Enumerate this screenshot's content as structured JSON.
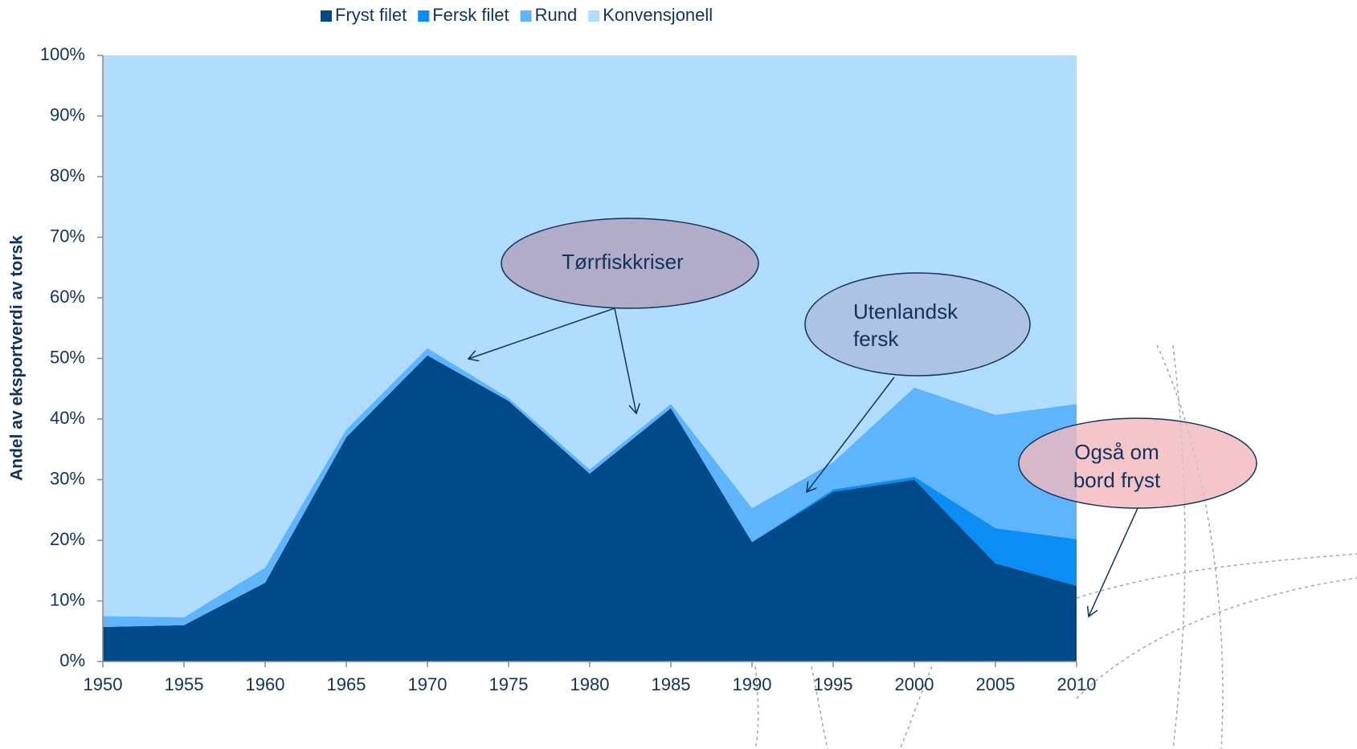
{
  "chart_data": {
    "type": "stacked_area",
    "x": [
      1950,
      1955,
      1960,
      1965,
      1970,
      1975,
      1980,
      1985,
      1990,
      1995,
      2000,
      2005,
      2010
    ],
    "series": [
      {
        "name": "Fryst filet",
        "color": "#004a8a",
        "values": [
          5.7,
          6.0,
          13.0,
          37.0,
          50.5,
          43.0,
          31.0,
          41.8,
          19.7,
          28.0,
          30.0,
          16.2,
          12.5
        ]
      },
      {
        "name": "Fersk filet",
        "color": "#0a8ef5",
        "values": [
          0,
          0,
          0,
          0,
          0,
          0,
          0,
          0,
          0,
          0.4,
          0.5,
          5.8,
          7.7
        ]
      },
      {
        "name": "Rund",
        "color": "#5fb5fb",
        "values": [
          1.8,
          1.3,
          2.5,
          1.3,
          1.2,
          0.5,
          0.7,
          0.7,
          5.6,
          4.5,
          14.7,
          18.7,
          22.3
        ]
      },
      {
        "name": "Konvensjonell",
        "color": "#b0dcfd",
        "values": [
          92.5,
          92.7,
          84.5,
          61.7,
          48.3,
          56.5,
          68.3,
          57.5,
          74.7,
          67.1,
          54.8,
          59.3,
          57.5
        ]
      }
    ],
    "y_label": "Andel av eksportverdi av torsk",
    "xlim": [
      1950,
      2010
    ],
    "xticks": [
      1950,
      1955,
      1960,
      1965,
      1970,
      1975,
      1980,
      1985,
      1990,
      1995,
      2000,
      2005,
      2010
    ],
    "ylim": [
      0,
      100
    ],
    "yticks": [
      {
        "value": 0,
        "label": "0%"
      },
      {
        "value": 10,
        "label": "10%"
      },
      {
        "value": 20,
        "label": "20%"
      },
      {
        "value": 30,
        "label": "30%"
      },
      {
        "value": 40,
        "label": "40%"
      },
      {
        "value": 50,
        "label": "50%"
      },
      {
        "value": 60,
        "label": "60%"
      },
      {
        "value": 70,
        "label": "70%"
      },
      {
        "value": 80,
        "label": "80%"
      },
      {
        "value": 90,
        "label": "90%"
      },
      {
        "value": 100,
        "label": "100%"
      }
    ],
    "legend": "top",
    "annotations": [
      {
        "lines": [
          "Tørrfiskkriser"
        ]
      },
      {
        "lines": [
          "Utenlandsk",
          "fersk"
        ]
      },
      {
        "lines": [
          "Også om",
          "bord fryst"
        ]
      }
    ]
  }
}
